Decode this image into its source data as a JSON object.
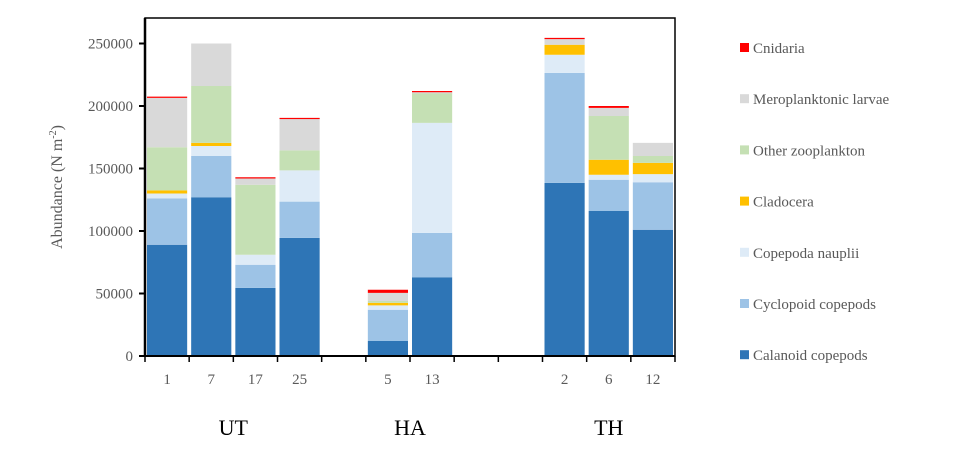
{
  "chart_data": {
    "type": "bar",
    "stacked": true,
    "title": "",
    "xlabel": "",
    "ylabel": "Abundance (N m",
    "ylabel_superscript": "-2",
    "ylabel_close": ")",
    "ylim": [
      0,
      250000
    ],
    "yticks": [
      0,
      50000,
      100000,
      150000,
      200000,
      250000
    ],
    "ytick_labels": [
      "0",
      "50000",
      "100000",
      "150000",
      "200000",
      "250000"
    ],
    "grid": false,
    "legend_position": "right",
    "categories": [
      "1",
      "7",
      "17",
      "25",
      "",
      "5",
      "13",
      "",
      "",
      "2",
      "6",
      "12"
    ],
    "groups": [
      {
        "label": "UT",
        "categories": [
          "1",
          "7",
          "17",
          "25"
        ]
      },
      {
        "label": "HA",
        "categories": [
          "5",
          "13"
        ]
      },
      {
        "label": "TH",
        "categories": [
          "2",
          "6",
          "12"
        ]
      }
    ],
    "series": [
      {
        "name": "Calanoid copepods",
        "color": "#2E75B6",
        "values": [
          89000,
          127000,
          54500,
          94500,
          null,
          12000,
          63000,
          null,
          null,
          138500,
          116000,
          101000
        ]
      },
      {
        "name": "Cyclopoid copepods",
        "color": "#9DC3E6",
        "values": [
          37000,
          33000,
          18500,
          29000,
          null,
          25000,
          35500,
          null,
          null,
          88000,
          25000,
          38000
        ]
      },
      {
        "name": "Copepoda nauplii",
        "color": "#DEEBF7",
        "values": [
          4000,
          8000,
          8000,
          25000,
          null,
          3500,
          88000,
          null,
          null,
          14500,
          4000,
          6500
        ]
      },
      {
        "name": "Cladocera",
        "color": "#FFC000",
        "values": [
          2500,
          2500,
          0,
          0,
          null,
          2000,
          0,
          null,
          null,
          8000,
          12000,
          9000
        ]
      },
      {
        "name": "Other zooplankton",
        "color": "#C5E0B4",
        "values": [
          34500,
          45500,
          56000,
          16000,
          null,
          1500,
          24000,
          null,
          null,
          0,
          35000,
          5500
        ]
      },
      {
        "name": "Meroplanktonic larvae",
        "color": "#D9D9D9",
        "values": [
          39500,
          34000,
          5000,
          25500,
          null,
          6500,
          500,
          null,
          null,
          4500,
          6500,
          10500
        ]
      },
      {
        "name": "Cnidaria",
        "color": "#FF0000",
        "values": [
          1000,
          0,
          1000,
          500,
          null,
          2500,
          1000,
          null,
          null,
          1000,
          1500,
          0
        ]
      }
    ]
  }
}
